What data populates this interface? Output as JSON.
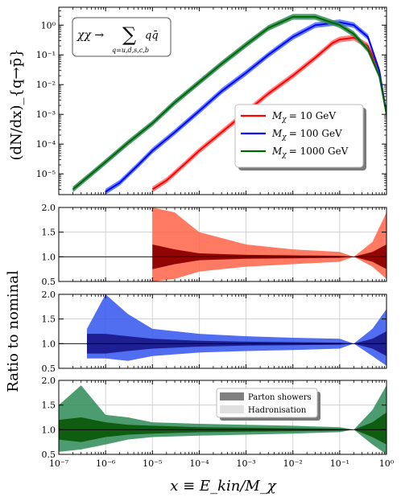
{
  "chart_data": [
    {
      "type": "line",
      "panel": "spectrum",
      "ylabel": "(dN/dx)_{q→p̄}",
      "xscale": "log",
      "yscale": "log",
      "xlim": [
        1e-07,
        1
      ],
      "ylim": [
        2e-06,
        4
      ],
      "grid": false,
      "legend_placement": "right",
      "annotation": "χχ → Σ_{q=u,d,s,c,b} q q̄",
      "annotation_lines": {
        "main": "χχ →",
        "sigma": "∑",
        "subscript": "q=u,d,s,c,b",
        "term": "qq̄"
      },
      "x_tick_labels": [
        "10⁻⁷",
        "10⁻⁶",
        "10⁻⁵",
        "10⁻⁴",
        "10⁻³",
        "10⁻²",
        "10⁻¹",
        "10⁰"
      ],
      "y_tick_labels": [
        "10⁻⁵",
        "10⁻⁴",
        "10⁻³",
        "10⁻²",
        "10⁻¹",
        "10⁰"
      ],
      "series": [
        {
          "name": "M_χ = 10 GeV",
          "legend_symbol": "M",
          "legend_sub": "χ",
          "legend_value": "= 10 GeV",
          "color": "#ff0000",
          "band_color": "#ff6f6f",
          "x": [
            1e-05,
            2e-05,
            5e-05,
            0.0001,
            0.0003,
            0.001,
            0.003,
            0.01,
            0.03,
            0.07,
            0.1,
            0.2,
            0.4,
            0.7,
            1.0
          ],
          "y": [
            3e-06,
            6e-06,
            2.2e-05,
            6e-05,
            0.00025,
            0.0012,
            0.005,
            0.02,
            0.08,
            0.25,
            0.33,
            0.38,
            0.2,
            0.03,
            0.001
          ]
        },
        {
          "name": "M_χ = 100 GeV",
          "legend_symbol": "M",
          "legend_sub": "χ",
          "legend_value": "= 100 GeV",
          "color": "#0000ff",
          "band_color": "#4a6bff",
          "x": [
            1e-06,
            2e-06,
            5e-06,
            1e-05,
            3e-05,
            0.0001,
            0.0003,
            0.001,
            0.003,
            0.01,
            0.03,
            0.1,
            0.2,
            0.4,
            0.7,
            1.0
          ],
          "y": [
            2.5e-06,
            5e-06,
            2e-05,
            6e-05,
            0.00025,
            0.0013,
            0.006,
            0.025,
            0.1,
            0.4,
            1.0,
            1.25,
            1.0,
            0.4,
            0.03,
            0.001
          ]
        },
        {
          "name": "M_χ = 1000 GeV",
          "legend_symbol": "M",
          "legend_sub": "χ",
          "legend_value": "= 1000 GeV",
          "color": "#006400",
          "band_color": "#2e8b57",
          "x": [
            2e-07,
            5e-07,
            1e-06,
            3e-06,
            1e-05,
            3e-05,
            0.0001,
            0.0003,
            0.001,
            0.003,
            0.01,
            0.03,
            0.1,
            0.2,
            0.4,
            0.7,
            1.0
          ],
          "y": [
            3e-06,
            1e-05,
            2.5e-05,
            0.00011,
            0.0005,
            0.0025,
            0.012,
            0.05,
            0.22,
            0.8,
            1.9,
            1.9,
            1.0,
            0.5,
            0.15,
            0.02,
            0.001
          ]
        }
      ]
    },
    {
      "type": "area",
      "panel": "ratio-10",
      "xscale": "log",
      "xlim": [
        1e-07,
        1
      ],
      "ylim": [
        0.5,
        2.0
      ],
      "grid": true,
      "y_tick_labels": [
        "0.5",
        "1.0",
        "1.5",
        "2.0"
      ],
      "series": [
        {
          "name": "Parton showers",
          "color": "#8b0000",
          "x": [
            1e-05,
            3e-05,
            0.0001,
            0.001,
            0.01,
            0.1,
            0.2,
            0.5,
            1.0
          ],
          "lower": [
            0.75,
            0.85,
            0.93,
            0.96,
            0.97,
            0.98,
            1.0,
            0.9,
            0.75
          ],
          "upper": [
            1.25,
            1.15,
            1.07,
            1.04,
            1.03,
            1.02,
            1.0,
            1.1,
            1.25
          ]
        },
        {
          "name": "Hadronisation",
          "color": "#ff6347",
          "x": [
            1e-05,
            3e-05,
            0.0001,
            0.001,
            0.01,
            0.1,
            0.2,
            0.5,
            1.0
          ],
          "lower": [
            0.5,
            0.55,
            0.7,
            0.8,
            0.85,
            0.9,
            1.0,
            0.8,
            0.55
          ],
          "upper": [
            2.0,
            1.9,
            1.5,
            1.25,
            1.15,
            1.1,
            1.0,
            1.3,
            1.9
          ]
        }
      ]
    },
    {
      "type": "area",
      "panel": "ratio-100",
      "xscale": "log",
      "xlim": [
        1e-07,
        1
      ],
      "ylim": [
        0.5,
        2.0
      ],
      "grid": true,
      "y_tick_labels": [
        "0.5",
        "1.0",
        "1.5",
        "2.0"
      ],
      "series": [
        {
          "name": "Parton showers",
          "color": "#1a1a8c",
          "x": [
            4e-07,
            1e-06,
            3e-06,
            1e-05,
            0.0001,
            0.001,
            0.01,
            0.1,
            0.2,
            0.5,
            1.0
          ],
          "lower": [
            0.8,
            0.8,
            0.85,
            0.9,
            0.94,
            0.96,
            0.97,
            0.98,
            1.0,
            0.9,
            0.75
          ],
          "upper": [
            1.2,
            1.2,
            1.15,
            1.1,
            1.06,
            1.04,
            1.03,
            1.02,
            1.0,
            1.1,
            1.25
          ]
        },
        {
          "name": "Hadronisation",
          "color": "#3355ee",
          "x": [
            4e-07,
            1e-06,
            3e-06,
            1e-05,
            0.0001,
            0.001,
            0.01,
            0.1,
            0.2,
            0.5,
            1.0
          ],
          "lower": [
            0.7,
            0.7,
            0.65,
            0.75,
            0.82,
            0.85,
            0.87,
            0.9,
            1.0,
            0.75,
            0.55
          ],
          "upper": [
            1.3,
            2.0,
            1.6,
            1.3,
            1.2,
            1.15,
            1.12,
            1.1,
            1.0,
            1.3,
            1.7
          ]
        }
      ]
    },
    {
      "type": "area",
      "panel": "ratio-1000",
      "xscale": "log",
      "xlim": [
        1e-07,
        1
      ],
      "ylim": [
        0.5,
        2.0
      ],
      "grid": true,
      "xlabel": "x ≡ E_kin/M_χ",
      "x_tick_labels": [
        "10⁻⁷",
        "10⁻⁶",
        "10⁻⁵",
        "10⁻⁴",
        "10⁻³",
        "10⁻²",
        "10⁻¹",
        "10⁰"
      ],
      "y_tick_labels": [
        "0.5",
        "1.0",
        "1.5",
        "2.0"
      ],
      "legend_placement": "top-right",
      "series": [
        {
          "name": "Parton showers",
          "color": "#0b5a0b",
          "x": [
            1e-07,
            3e-07,
            1e-06,
            3e-06,
            1e-05,
            0.0001,
            0.001,
            0.01,
            0.1,
            0.2,
            0.5,
            1.0
          ],
          "lower": [
            0.8,
            0.75,
            0.85,
            0.9,
            0.92,
            0.95,
            0.96,
            0.97,
            0.98,
            1.0,
            0.85,
            0.7
          ],
          "upper": [
            1.2,
            1.25,
            1.15,
            1.1,
            1.08,
            1.05,
            1.04,
            1.03,
            1.02,
            1.0,
            1.15,
            1.35
          ]
        },
        {
          "name": "Hadronisation",
          "color": "#2e8b57",
          "x": [
            1e-07,
            3e-07,
            1e-06,
            3e-06,
            1e-05,
            0.0001,
            0.001,
            0.01,
            0.1,
            0.2,
            0.5,
            1.0
          ],
          "lower": [
            0.55,
            0.6,
            0.7,
            0.8,
            0.85,
            0.88,
            0.9,
            0.92,
            0.95,
            1.0,
            0.7,
            0.5
          ],
          "upper": [
            1.5,
            1.9,
            1.3,
            1.25,
            1.15,
            1.12,
            1.1,
            1.08,
            1.05,
            1.0,
            1.4,
            1.9
          ]
        }
      ]
    }
  ],
  "shared": {
    "ratio_ylabel": "Ratio to nominal",
    "ratio_legend": [
      {
        "label": "Parton showers",
        "swatch": "#808080"
      },
      {
        "label": "Hadronisation",
        "swatch": "#e0e0e0"
      }
    ]
  }
}
